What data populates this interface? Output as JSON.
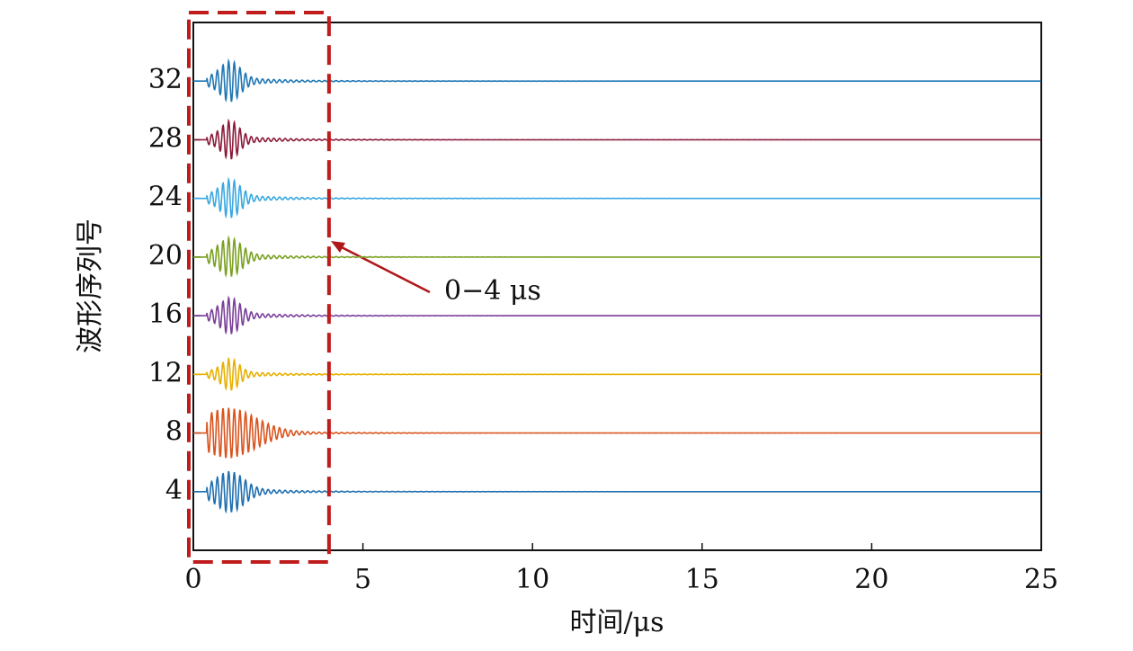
{
  "chart_data": {
    "type": "waveform",
    "x_label": "时间/μs",
    "y_label": "波形序列号",
    "xlim": [
      0,
      25
    ],
    "xticks": [
      0,
      5,
      10,
      15,
      20,
      25
    ],
    "ylim": [
      0,
      36
    ],
    "yticks": [
      4,
      8,
      12,
      16,
      20,
      24,
      28,
      32
    ],
    "series": [
      {
        "color": "#1f6fb0",
        "level": 4
      },
      {
        "color": "#d9541e",
        "level": 8
      },
      {
        "color": "#e8b000",
        "level": 12
      },
      {
        "color": "#7a3f9a",
        "level": 16
      },
      {
        "color": "#7aa020",
        "level": 20
      },
      {
        "color": "#3aa8e0",
        "level": 24
      },
      {
        "color": "#8b1a3a",
        "level": 28
      },
      {
        "color": "#1f77b4",
        "level": 32
      }
    ],
    "highlight": [
      0,
      4
    ],
    "annotation": "0−4 μs"
  }
}
